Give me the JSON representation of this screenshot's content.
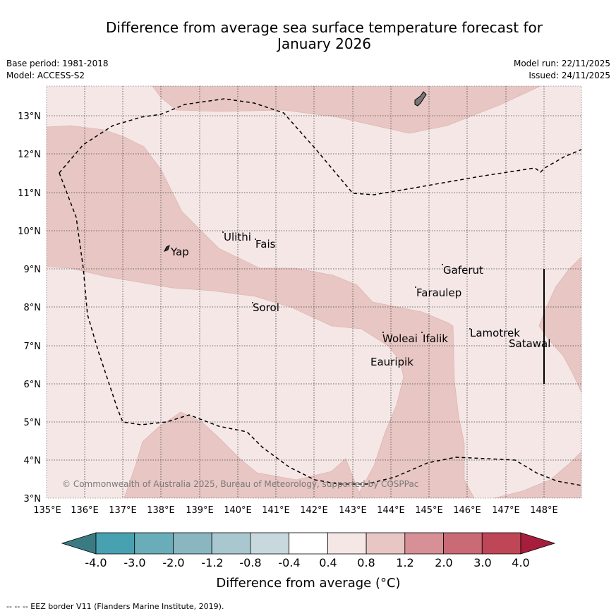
{
  "title": {
    "line1": "Difference from average sea surface temperature forecast for",
    "line2": "January 2026"
  },
  "meta": {
    "base_period": "Base period: 1981-2018",
    "model": "Model: ACCESS-S2",
    "model_run": "Model run: 22/11/2025",
    "issued": "Issued: 24/11/2025"
  },
  "map": {
    "lat_labels": [
      "13°N",
      "12°N",
      "11°N",
      "10°N",
      "9°N",
      "8°N",
      "7°N",
      "6°N",
      "5°N",
      "4°N",
      "3°N"
    ],
    "lon_labels": [
      "135°E",
      "136°E",
      "137°E",
      "138°E",
      "139°E",
      "140°E",
      "141°E",
      "142°E",
      "143°E",
      "144°E",
      "145°E",
      "146°E",
      "147°E",
      "148°E"
    ],
    "place_labels": [
      "Ulithi",
      "Fais",
      "Yap",
      "Gaferut",
      "Faraulep",
      "Sorol",
      "Lamotrek",
      "Woleai",
      "Ifalik",
      "Satawal",
      "Eauripik"
    ],
    "copyright": "© Commonwealth of Australia 2025, Bureau of Meteorology, supported by COSPPac",
    "colors": {
      "background": "#f4e7e6",
      "anomaly_04_08": "#f4e7e6",
      "anomaly_08_12": "#e7c6c3"
    }
  },
  "colorbar": {
    "labels": [
      "-4.0",
      "-3.0",
      "-2.0",
      "-1.2",
      "-0.8",
      "-0.4",
      "0.4",
      "0.8",
      "1.2",
      "2.0",
      "3.0",
      "4.0"
    ],
    "colors": [
      "#3a7b83",
      "#48a1b1",
      "#6aadba",
      "#8ab6c1",
      "#a9c7ce",
      "#c8d9dd",
      "#ffffff",
      "#f4e7e6",
      "#e7c6c3",
      "#d79095",
      "#ca6a74",
      "#bf4656",
      "#a61e3b"
    ],
    "label_text": "Difference from average (°C)"
  },
  "footer": "-- -- -- EEZ border V11 (Flanders Marine Institute, 2019)."
}
